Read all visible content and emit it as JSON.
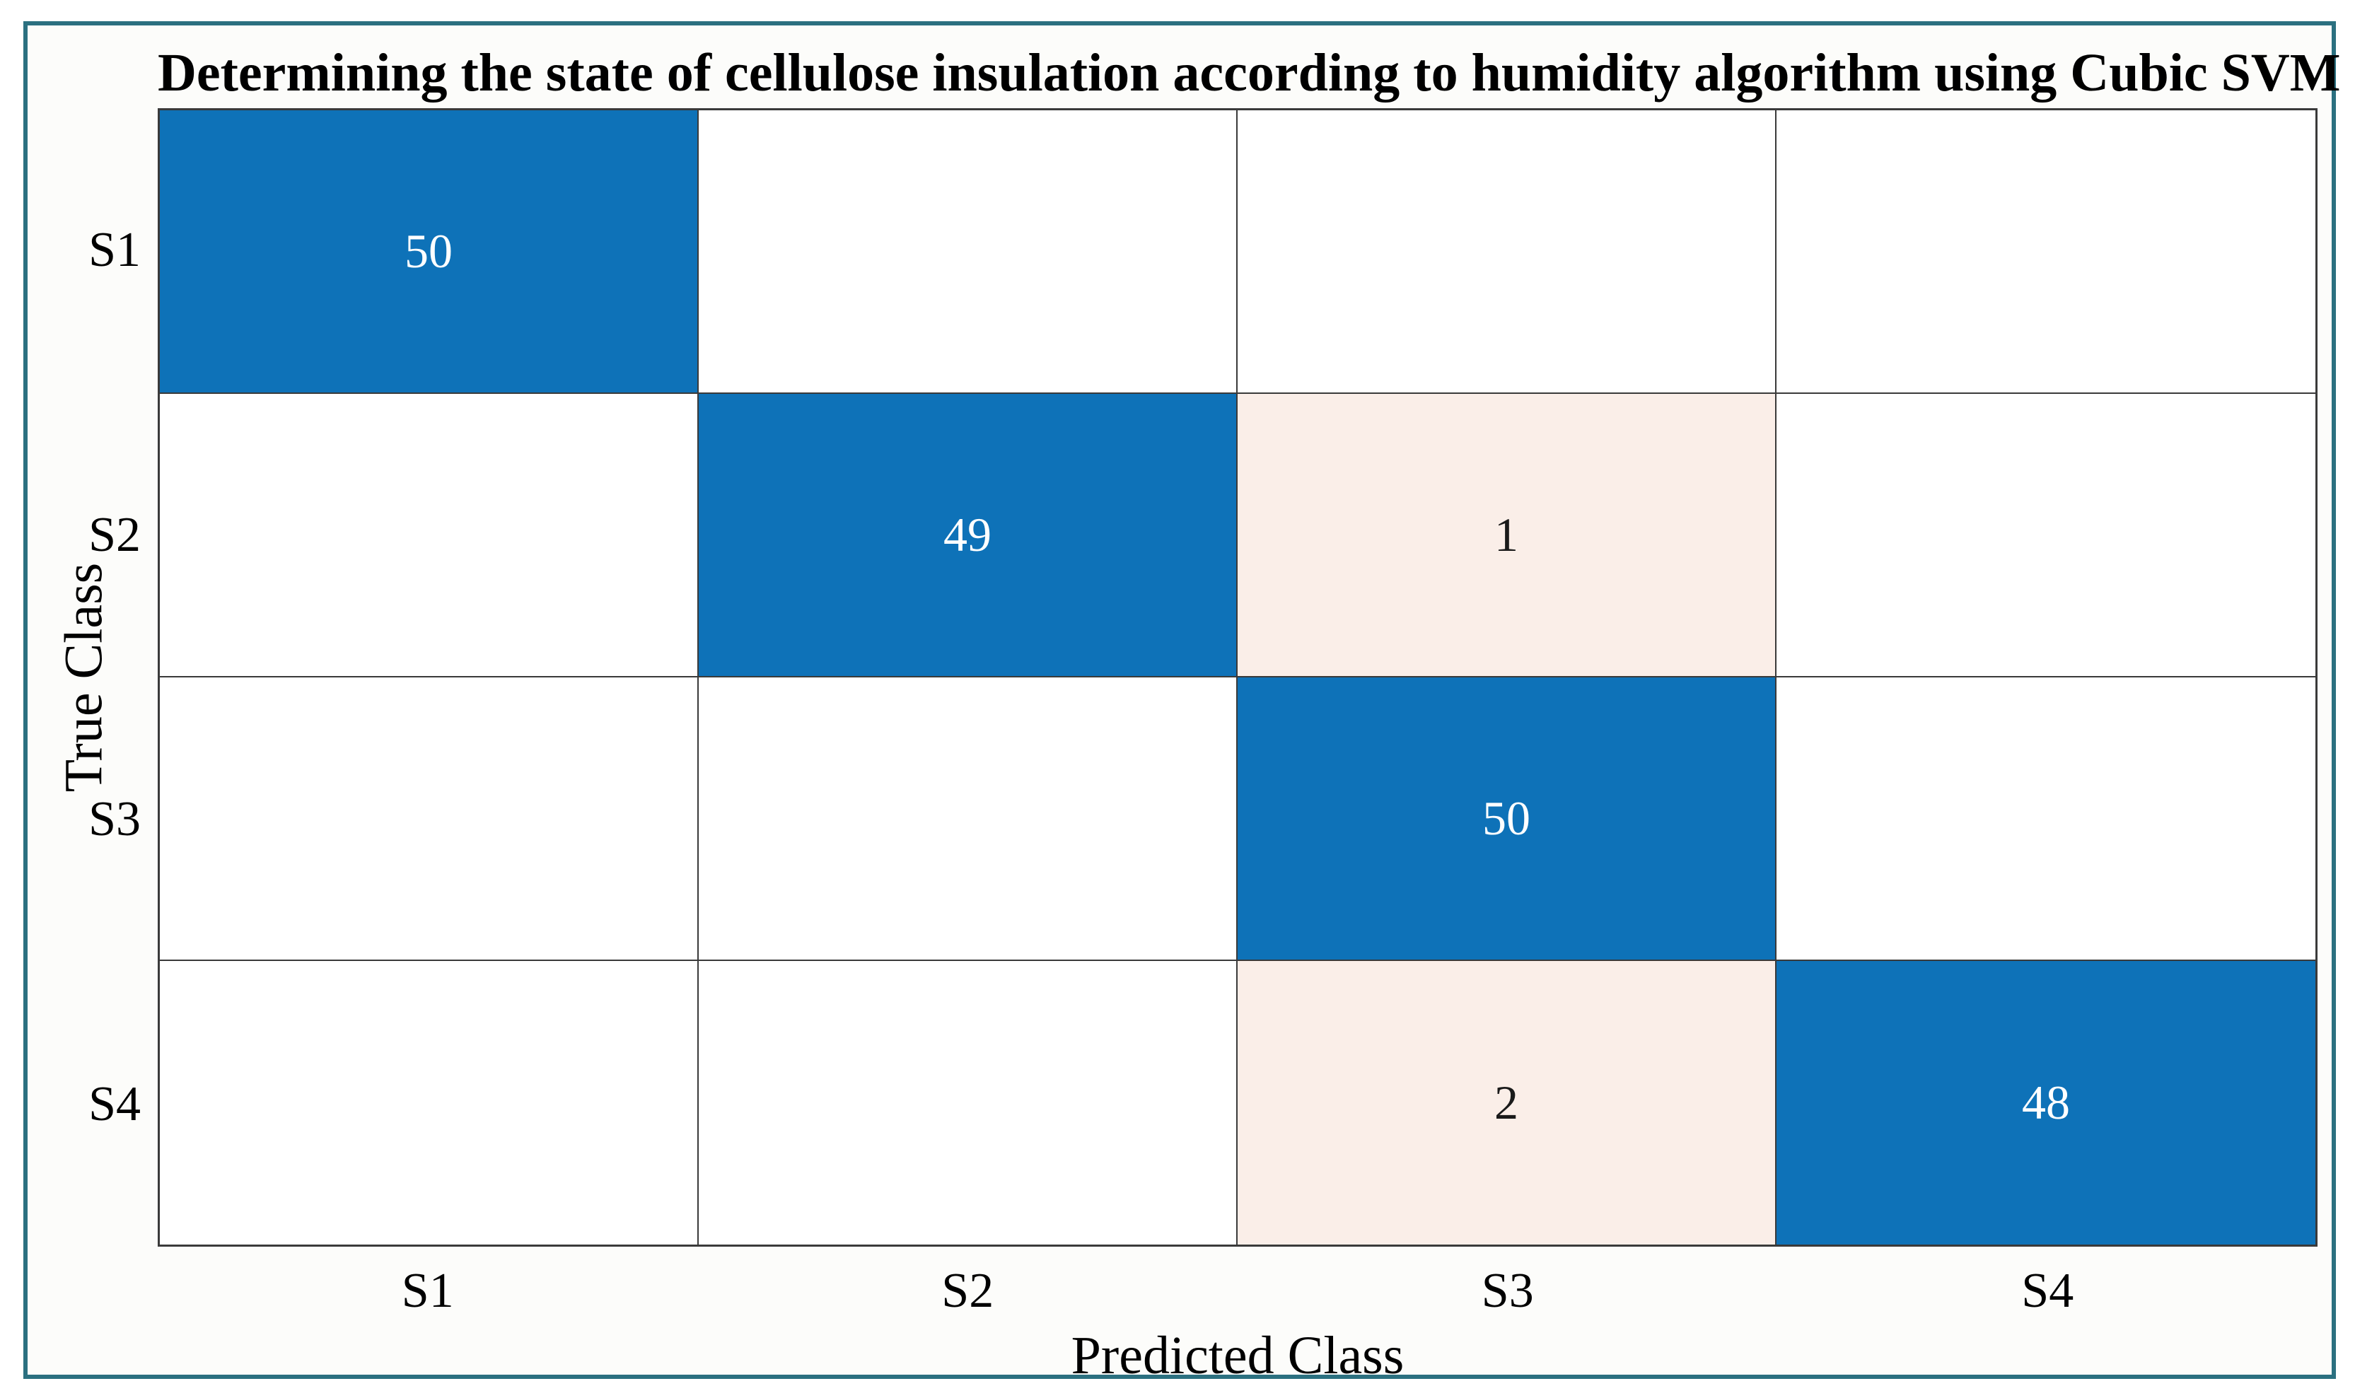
{
  "figure": {
    "frame_border_color": "#2B7080",
    "background_color": "#FCFCFA"
  },
  "chart_data": {
    "type": "heatmap",
    "variant": "confusion-matrix",
    "title": "Determining the state of cellulose insulation according to humidity algorithm using Cubic SVM",
    "xlabel": "Predicted Class",
    "ylabel": "True Class",
    "x_categories": [
      "S1",
      "S2",
      "S3",
      "S4"
    ],
    "y_categories": [
      "S1",
      "S2",
      "S3",
      "S4"
    ],
    "matrix": [
      [
        50,
        0,
        0,
        0
      ],
      [
        0,
        49,
        1,
        0
      ],
      [
        0,
        0,
        50,
        0
      ],
      [
        0,
        0,
        2,
        48
      ]
    ],
    "display_rule": "zero cells rendered blank white; nonzero diagonal cells blue with white text; nonzero off-diagonal cells pale cream with black text",
    "legend": "none",
    "grid": true,
    "colors": {
      "diagonal_fill": "#0E72B8",
      "off_diagonal_fill": "#FAEEE8",
      "zero_fill": "#FFFFFF",
      "diagonal_text": "#FFFFFF",
      "off_diagonal_text": "#1A1A1A",
      "grid_line": "#3A3A3A"
    }
  }
}
